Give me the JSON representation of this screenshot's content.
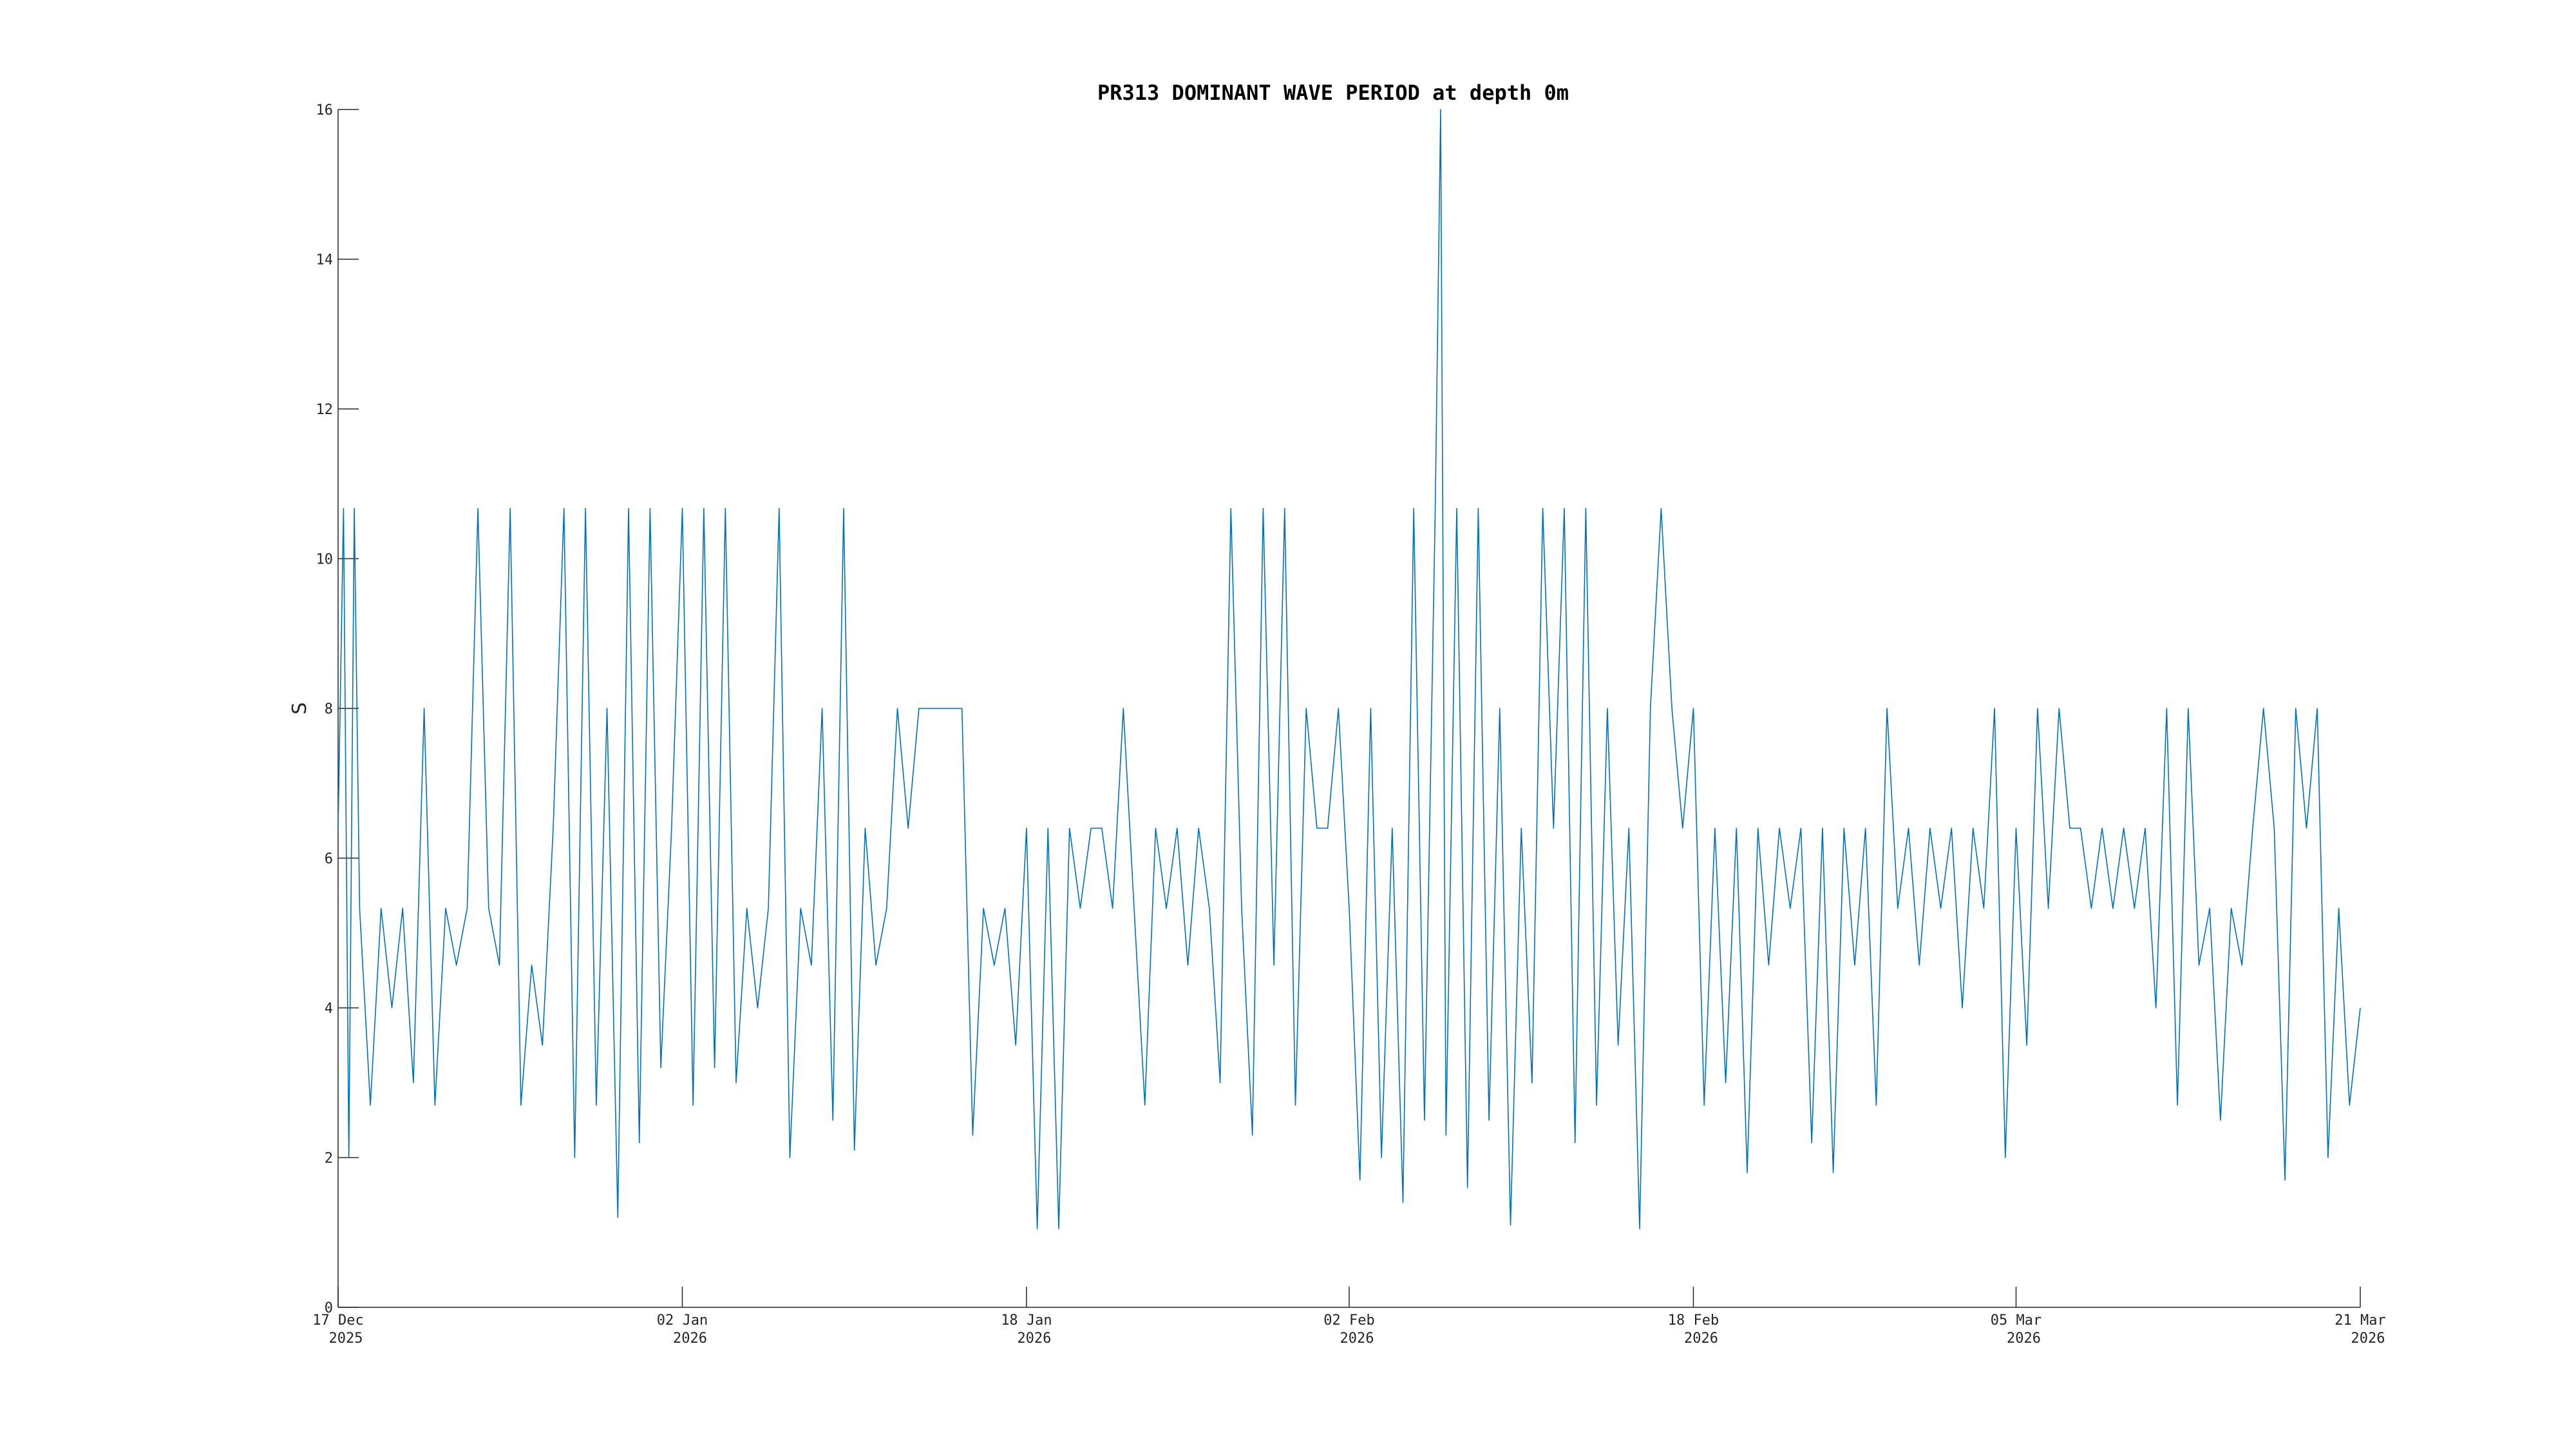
{
  "chart_data": {
    "type": "line",
    "title": "PR313 DOMINANT WAVE PERIOD at depth 0m",
    "xlabel": "",
    "ylabel": "S",
    "ylim": [
      0,
      16
    ],
    "xlim": [
      "2025-12-17",
      "2026-03-21"
    ],
    "yticks": [
      0,
      2,
      4,
      6,
      8,
      10,
      12,
      14,
      16
    ],
    "xticks": [
      {
        "date": "2025-12-17",
        "line1": "17 Dec",
        "line2": "2025"
      },
      {
        "date": "2026-01-02",
        "line1": "02 Jan",
        "line2": "2026"
      },
      {
        "date": "2026-01-18",
        "line1": "18 Jan",
        "line2": "2026"
      },
      {
        "date": "2026-02-02",
        "line1": "02 Feb",
        "line2": "2026"
      },
      {
        "date": "2026-02-18",
        "line1": "18 Feb",
        "line2": "2026"
      },
      {
        "date": "2026-03-05",
        "line1": "05 Mar",
        "line2": "2026"
      },
      {
        "date": "2026-03-21",
        "line1": "21 Mar",
        "line2": "2026"
      }
    ],
    "grid": false,
    "series": [
      {
        "color": "#0072bd",
        "points": [
          [
            "2025-12-17",
            6.4
          ],
          [
            "2025-12-17T06:00",
            10.67
          ],
          [
            "2025-12-17T12:00",
            2.0
          ],
          [
            "2025-12-17T18:00",
            10.67
          ],
          [
            "2025-12-18",
            5.33
          ],
          [
            "2025-12-18T12:00",
            2.7
          ],
          [
            "2025-12-19",
            5.33
          ],
          [
            "2025-12-19T12:00",
            4.0
          ],
          [
            "2025-12-20",
            5.33
          ],
          [
            "2025-12-20T12:00",
            3.0
          ],
          [
            "2025-12-21",
            8.0
          ],
          [
            "2025-12-21T12:00",
            2.7
          ],
          [
            "2025-12-22",
            5.33
          ],
          [
            "2025-12-22T12:00",
            4.57
          ],
          [
            "2025-12-23",
            5.33
          ],
          [
            "2025-12-23T12:00",
            10.67
          ],
          [
            "2025-12-24",
            5.33
          ],
          [
            "2025-12-24T12:00",
            4.57
          ],
          [
            "2025-12-25",
            10.67
          ],
          [
            "2025-12-25T12:00",
            2.7
          ],
          [
            "2025-12-26",
            4.57
          ],
          [
            "2025-12-26T12:00",
            3.5
          ],
          [
            "2025-12-27",
            6.4
          ],
          [
            "2025-12-27T12:00",
            10.67
          ],
          [
            "2025-12-28",
            2.0
          ],
          [
            "2025-12-28T12:00",
            10.67
          ],
          [
            "2025-12-29",
            2.7
          ],
          [
            "2025-12-29T12:00",
            8.0
          ],
          [
            "2025-12-30",
            1.2
          ],
          [
            "2025-12-30T12:00",
            10.67
          ],
          [
            "2025-12-31",
            2.2
          ],
          [
            "2025-12-31T12:00",
            10.67
          ],
          [
            "2026-01-01",
            3.2
          ],
          [
            "2026-01-01T12:00",
            6.4
          ],
          [
            "2026-01-02",
            10.67
          ],
          [
            "2026-01-02T12:00",
            2.7
          ],
          [
            "2026-01-03",
            10.67
          ],
          [
            "2026-01-03T12:00",
            3.2
          ],
          [
            "2026-01-04",
            10.67
          ],
          [
            "2026-01-04T12:00",
            3.0
          ],
          [
            "2026-01-05",
            5.33
          ],
          [
            "2026-01-05T12:00",
            4.0
          ],
          [
            "2026-01-06",
            5.33
          ],
          [
            "2026-01-06T12:00",
            10.67
          ],
          [
            "2026-01-07",
            2.0
          ],
          [
            "2026-01-07T12:00",
            5.33
          ],
          [
            "2026-01-08",
            4.57
          ],
          [
            "2026-01-08T12:00",
            8.0
          ],
          [
            "2026-01-09",
            2.5
          ],
          [
            "2026-01-09T12:00",
            10.67
          ],
          [
            "2026-01-10",
            2.1
          ],
          [
            "2026-01-10T12:00",
            6.4
          ],
          [
            "2026-01-11",
            4.57
          ],
          [
            "2026-01-11T12:00",
            5.33
          ],
          [
            "2026-01-12",
            8.0
          ],
          [
            "2026-01-12T12:00",
            6.4
          ],
          [
            "2026-01-13",
            8.0
          ],
          [
            "2026-01-13T12:00",
            8.0
          ],
          [
            "2026-01-14",
            8.0
          ],
          [
            "2026-01-14T12:00",
            8.0
          ],
          [
            "2026-01-15",
            8.0
          ],
          [
            "2026-01-15T12:00",
            2.3
          ],
          [
            "2026-01-16",
            5.33
          ],
          [
            "2026-01-16T12:00",
            4.57
          ],
          [
            "2026-01-17",
            5.33
          ],
          [
            "2026-01-17T12:00",
            3.5
          ],
          [
            "2026-01-18",
            6.4
          ],
          [
            "2026-01-18T12:00",
            1.05
          ],
          [
            "2026-01-19",
            6.4
          ],
          [
            "2026-01-19T12:00",
            1.05
          ],
          [
            "2026-01-20",
            6.4
          ],
          [
            "2026-01-20T12:00",
            5.33
          ],
          [
            "2026-01-21",
            6.4
          ],
          [
            "2026-01-21T12:00",
            6.4
          ],
          [
            "2026-01-22",
            5.33
          ],
          [
            "2026-01-22T12:00",
            8.0
          ],
          [
            "2026-01-23",
            5.33
          ],
          [
            "2026-01-23T12:00",
            2.7
          ],
          [
            "2026-01-24",
            6.4
          ],
          [
            "2026-01-24T12:00",
            5.33
          ],
          [
            "2026-01-25",
            6.4
          ],
          [
            "2026-01-25T12:00",
            4.57
          ],
          [
            "2026-01-26",
            6.4
          ],
          [
            "2026-01-26T12:00",
            5.33
          ],
          [
            "2026-01-27",
            3.0
          ],
          [
            "2026-01-27T12:00",
            10.67
          ],
          [
            "2026-01-28",
            5.33
          ],
          [
            "2026-01-28T12:00",
            2.3
          ],
          [
            "2026-01-29",
            10.67
          ],
          [
            "2026-01-29T12:00",
            4.57
          ],
          [
            "2026-01-30",
            10.67
          ],
          [
            "2026-01-30T12:00",
            2.7
          ],
          [
            "2026-01-31",
            8.0
          ],
          [
            "2026-01-31T12:00",
            6.4
          ],
          [
            "2026-02-01",
            6.4
          ],
          [
            "2026-02-01T12:00",
            8.0
          ],
          [
            "2026-02-02",
            5.33
          ],
          [
            "2026-02-02T12:00",
            1.7
          ],
          [
            "2026-02-03",
            8.0
          ],
          [
            "2026-02-03T12:00",
            2.0
          ],
          [
            "2026-02-04",
            6.4
          ],
          [
            "2026-02-04T12:00",
            1.4
          ],
          [
            "2026-02-05",
            10.67
          ],
          [
            "2026-02-05T12:00",
            2.5
          ],
          [
            "2026-02-06",
            10.67
          ],
          [
            "2026-02-06T06:00",
            16.0
          ],
          [
            "2026-02-06T12:00",
            2.3
          ],
          [
            "2026-02-07",
            10.67
          ],
          [
            "2026-02-07T12:00",
            1.6
          ],
          [
            "2026-02-08",
            10.67
          ],
          [
            "2026-02-08T12:00",
            2.5
          ],
          [
            "2026-02-09",
            8.0
          ],
          [
            "2026-02-09T12:00",
            1.1
          ],
          [
            "2026-02-10",
            6.4
          ],
          [
            "2026-02-10T12:00",
            3.0
          ],
          [
            "2026-02-11",
            10.67
          ],
          [
            "2026-02-11T12:00",
            6.4
          ],
          [
            "2026-02-12",
            10.67
          ],
          [
            "2026-02-12T12:00",
            2.2
          ],
          [
            "2026-02-13",
            10.67
          ],
          [
            "2026-02-13T12:00",
            2.7
          ],
          [
            "2026-02-14",
            8.0
          ],
          [
            "2026-02-14T12:00",
            3.5
          ],
          [
            "2026-02-15",
            6.4
          ],
          [
            "2026-02-15T12:00",
            1.05
          ],
          [
            "2026-02-16",
            8.0
          ],
          [
            "2026-02-16T12:00",
            10.67
          ],
          [
            "2026-02-17",
            8.0
          ],
          [
            "2026-02-17T12:00",
            6.4
          ],
          [
            "2026-02-18",
            8.0
          ],
          [
            "2026-02-18T12:00",
            2.7
          ],
          [
            "2026-02-19",
            6.4
          ],
          [
            "2026-02-19T12:00",
            3.0
          ],
          [
            "2026-02-20",
            6.4
          ],
          [
            "2026-02-20T12:00",
            1.8
          ],
          [
            "2026-02-21",
            6.4
          ],
          [
            "2026-02-21T12:00",
            4.57
          ],
          [
            "2026-02-22",
            6.4
          ],
          [
            "2026-02-22T12:00",
            5.33
          ],
          [
            "2026-02-23",
            6.4
          ],
          [
            "2026-02-23T12:00",
            2.2
          ],
          [
            "2026-02-24",
            6.4
          ],
          [
            "2026-02-24T12:00",
            1.8
          ],
          [
            "2026-02-25",
            6.4
          ],
          [
            "2026-02-25T12:00",
            4.57
          ],
          [
            "2026-02-26",
            6.4
          ],
          [
            "2026-02-26T12:00",
            2.7
          ],
          [
            "2026-02-27",
            8.0
          ],
          [
            "2026-02-27T12:00",
            5.33
          ],
          [
            "2026-02-28",
            6.4
          ],
          [
            "2026-02-28T12:00",
            4.57
          ],
          [
            "2026-03-01",
            6.4
          ],
          [
            "2026-03-01T12:00",
            5.33
          ],
          [
            "2026-03-02",
            6.4
          ],
          [
            "2026-03-02T12:00",
            4.0
          ],
          [
            "2026-03-03",
            6.4
          ],
          [
            "2026-03-03T12:00",
            5.33
          ],
          [
            "2026-03-04",
            8.0
          ],
          [
            "2026-03-04T12:00",
            2.0
          ],
          [
            "2026-03-05",
            6.4
          ],
          [
            "2026-03-05T12:00",
            3.5
          ],
          [
            "2026-03-06",
            8.0
          ],
          [
            "2026-03-06T12:00",
            5.33
          ],
          [
            "2026-03-07",
            8.0
          ],
          [
            "2026-03-07T12:00",
            6.4
          ],
          [
            "2026-03-08",
            6.4
          ],
          [
            "2026-03-08T12:00",
            5.33
          ],
          [
            "2026-03-09",
            6.4
          ],
          [
            "2026-03-09T12:00",
            5.33
          ],
          [
            "2026-03-10",
            6.4
          ],
          [
            "2026-03-10T12:00",
            5.33
          ],
          [
            "2026-03-11",
            6.4
          ],
          [
            "2026-03-11T12:00",
            4.0
          ],
          [
            "2026-03-12",
            8.0
          ],
          [
            "2026-03-12T12:00",
            2.7
          ],
          [
            "2026-03-13",
            8.0
          ],
          [
            "2026-03-13T12:00",
            4.57
          ],
          [
            "2026-03-14",
            5.33
          ],
          [
            "2026-03-14T12:00",
            2.5
          ],
          [
            "2026-03-15",
            5.33
          ],
          [
            "2026-03-15T12:00",
            4.57
          ],
          [
            "2026-03-16",
            6.4
          ],
          [
            "2026-03-16T12:00",
            8.0
          ],
          [
            "2026-03-17",
            6.4
          ],
          [
            "2026-03-17T12:00",
            1.7
          ],
          [
            "2026-03-18",
            8.0
          ],
          [
            "2026-03-18T12:00",
            6.4
          ],
          [
            "2026-03-19",
            8.0
          ],
          [
            "2026-03-19T12:00",
            2.0
          ],
          [
            "2026-03-20",
            5.33
          ],
          [
            "2026-03-20T12:00",
            2.7
          ],
          [
            "2026-03-21",
            4.0
          ]
        ]
      }
    ]
  }
}
